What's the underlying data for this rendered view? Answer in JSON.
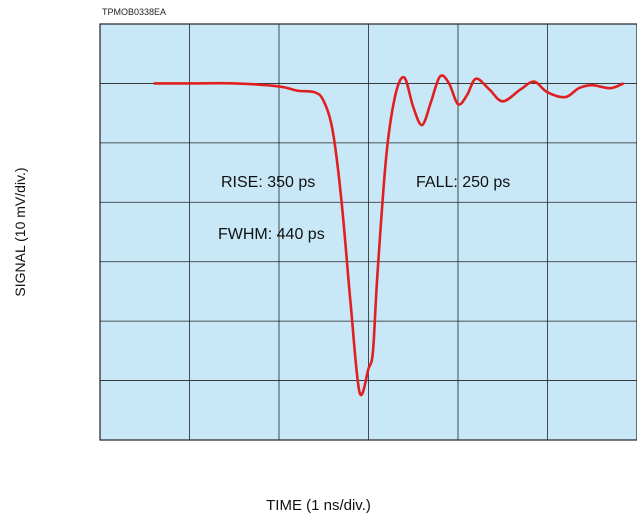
{
  "figure_code": "TPMOB0338EA",
  "chart_data": {
    "type": "line",
    "xlabel": "TIME (1 ns/div.)",
    "ylabel": "SIGNAL (10 mV/div.)",
    "x_unit": "ns",
    "y_unit": "mV",
    "xlim": [
      0,
      6
    ],
    "ylim": [
      -60,
      10
    ],
    "grid": true,
    "series": [
      {
        "color": "#e02020",
        "x": [
          0.6,
          1.0,
          1.5,
          2.0,
          2.2,
          2.4,
          2.5,
          2.6,
          2.7,
          2.8,
          2.9,
          3.0,
          3.05,
          3.1,
          3.2,
          3.3,
          3.4,
          3.5,
          3.6,
          3.7,
          3.8,
          3.9,
          4.0,
          4.1,
          4.2,
          4.35,
          4.5,
          4.7,
          4.85,
          5.0,
          5.2,
          5.35,
          5.5,
          5.7,
          5.85
        ],
        "y": [
          0,
          0,
          0,
          -0.5,
          -1.2,
          -1.5,
          -3,
          -8,
          -20,
          -37,
          -52,
          -48,
          -45,
          -32,
          -12,
          -2,
          1,
          -4,
          -7,
          -3,
          1.2,
          0,
          -3.5,
          -2,
          0.8,
          -1,
          -3,
          -1,
          0.3,
          -1.5,
          -2.3,
          -0.8,
          -0.3,
          -0.8,
          0
        ]
      }
    ],
    "annotations": [
      {
        "text": "RISE: 350 ps"
      },
      {
        "text": "FWHM: 440 ps"
      },
      {
        "text": "FALL: 250 ps"
      }
    ]
  },
  "colors": {
    "plot_background": "#c8e8f8",
    "grid": "#222222",
    "trace": "#e02020"
  }
}
